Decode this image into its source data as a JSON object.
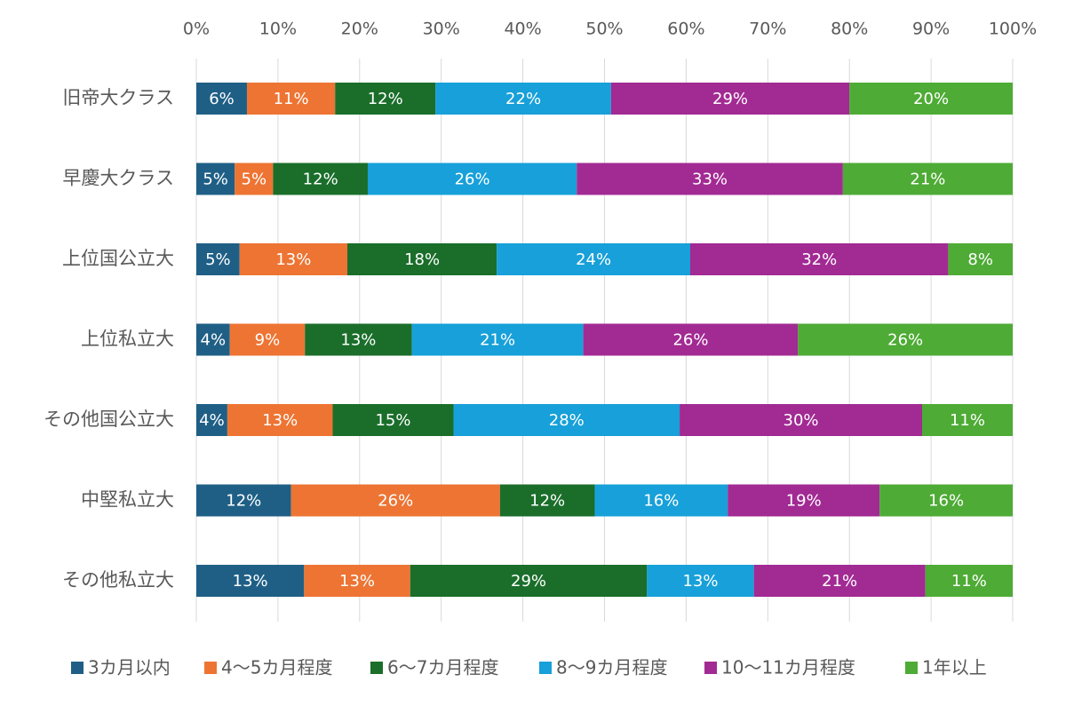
{
  "chart_data": {
    "type": "stacked-bar-horizontal",
    "categories": [
      "旧帝大クラス",
      "早慶大クラス",
      "上位国公立大",
      "上位私立大",
      "その他国公立大",
      "中堅私立大",
      "その他私立大"
    ],
    "series": [
      {
        "name": "3カ月以内",
        "color": "#1f5f86",
        "values": [
          6.2,
          4.7,
          5.3,
          4.1,
          3.8,
          11.6,
          13.2
        ],
        "value_labels": [
          "6%",
          "5%",
          "5%",
          "4%",
          "4%",
          "12%",
          "13%"
        ]
      },
      {
        "name": "4～5カ月程度",
        "color": "#ed7433",
        "values": [
          10.8,
          4.7,
          13.2,
          9.2,
          12.9,
          25.6,
          13.0
        ],
        "value_labels": [
          "11%",
          "5%",
          "13%",
          "9%",
          "13%",
          "26%",
          "13%"
        ]
      },
      {
        "name": "6～7カ月程度",
        "color": "#1a6e2a",
        "values": [
          12.3,
          11.6,
          18.3,
          13.1,
          14.8,
          11.6,
          29.0
        ],
        "value_labels": [
          "12%",
          "12%",
          "18%",
          "13%",
          "15%",
          "12%",
          "29%"
        ]
      },
      {
        "name": "8～9カ月程度",
        "color": "#17a0d9",
        "values": [
          21.5,
          25.6,
          23.7,
          21.0,
          27.7,
          16.3,
          13.1
        ],
        "value_labels": [
          "22%",
          "26%",
          "24%",
          "21%",
          "28%",
          "16%",
          "13%"
        ]
      },
      {
        "name": "10～11カ月程度",
        "color": "#a22a93",
        "values": [
          29.2,
          32.6,
          31.6,
          26.3,
          29.7,
          18.6,
          21.0
        ],
        "value_labels": [
          "29%",
          "33%",
          "32%",
          "26%",
          "30%",
          "19%",
          "21%"
        ]
      },
      {
        "name": "1年以上",
        "color": "#4eab35",
        "values": [
          20.0,
          20.8,
          7.9,
          26.3,
          11.1,
          16.3,
          10.7
        ],
        "value_labels": [
          "20%",
          "21%",
          "8%",
          "26%",
          "11%",
          "16%",
          "11%"
        ]
      }
    ],
    "xlim": [
      0,
      100
    ],
    "xticks": [
      {
        "value": 0,
        "label": "0%"
      },
      {
        "value": 10,
        "label": "10%"
      },
      {
        "value": 20,
        "label": "20%"
      },
      {
        "value": 30,
        "label": "30%"
      },
      {
        "value": 40,
        "label": "40%"
      },
      {
        "value": 50,
        "label": "50%"
      },
      {
        "value": 60,
        "label": "60%"
      },
      {
        "value": 70,
        "label": "70%"
      },
      {
        "value": 80,
        "label": "80%"
      },
      {
        "value": 90,
        "label": "90%"
      },
      {
        "value": 100,
        "label": "100%"
      }
    ],
    "grid": true,
    "legend": "bottom"
  }
}
